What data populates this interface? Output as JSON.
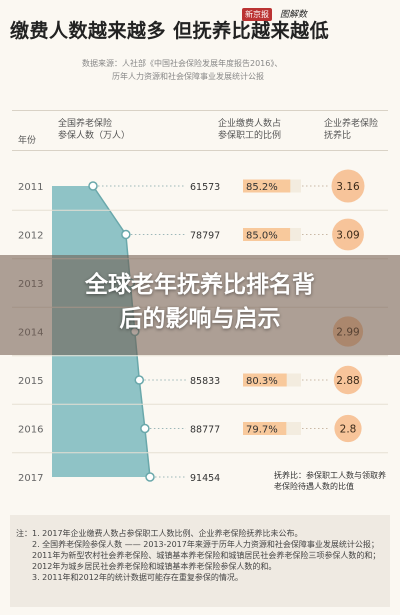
{
  "header": {
    "title": "缴费人数越来越多 但抚养比越来越低",
    "brand_badge": "新京报",
    "brand_script": "图解数"
  },
  "source": {
    "line1": "数据来源：人社部《中国社会保险发展年度报告2016》、",
    "line2": "历年人力资源和社会保障事业发展统计公报"
  },
  "columns": {
    "year": "年份",
    "participants": [
      "全国养老保险",
      "参保人数（万人）"
    ],
    "ratio": [
      "企业缴费人数占",
      "参保职工的比例"
    ],
    "dependency": [
      "企业养老保险",
      "抚养比"
    ]
  },
  "chart_data": {
    "type": "table",
    "years": [
      "2011",
      "2012",
      "2013",
      "2014",
      "2015",
      "2016",
      "2017"
    ],
    "participants": [
      61573,
      78797,
      null,
      null,
      85833,
      88777,
      91454
    ],
    "participants_labels": [
      "61573",
      "78797",
      "",
      "",
      "85833",
      "88777",
      "91454"
    ],
    "employer_ratio": [
      "85.2%",
      "85.0%",
      "",
      "",
      "80.3%",
      "79.7%",
      ""
    ],
    "employer_ratio_values": [
      85.2,
      85.0,
      null,
      null,
      80.3,
      79.7,
      null
    ],
    "dependency_ratio": [
      "3.16",
      "3.09",
      "",
      "2.99",
      "2.88",
      "2.8",
      ""
    ],
    "dependency_ratio_values": [
      3.16,
      3.09,
      null,
      2.99,
      2.88,
      2.8,
      null
    ],
    "colors": {
      "area": "#8fc3c6",
      "area_edge": "#6aa8ab",
      "bar_fill": "#f8c99c",
      "bar_track": "#f3ecdf",
      "bubble": "#f7c49a",
      "bubble_text": "#3a2a1a",
      "year_text": "#666666"
    }
  },
  "overlay": {
    "line1": "全球老年抚养比排名背",
    "line2": "后的影响与启示"
  },
  "note": {
    "text": "抚养比：参保职工人数与领取养老保险待遇人数的比值"
  },
  "footnotes": {
    "label": "注：",
    "items": [
      "1. 2017年企业缴费人数占参保职工人数比例、企业养老保险抚养比未公布。",
      "2. 全国养老保险参保人数 —— 2013-2017年来源于历年人力资源和社会保障事业发展统计公报；2011年为新型农村社会养老保险、城镇基本养老保险和城镇居民社会养老保险三项参保人数的和；2012年为城乡居民社会养老保险和城镇基本养老保险参保人数的和。",
      "3. 2011年和2012年的统计数据可能存在重复参保的情况。"
    ]
  }
}
